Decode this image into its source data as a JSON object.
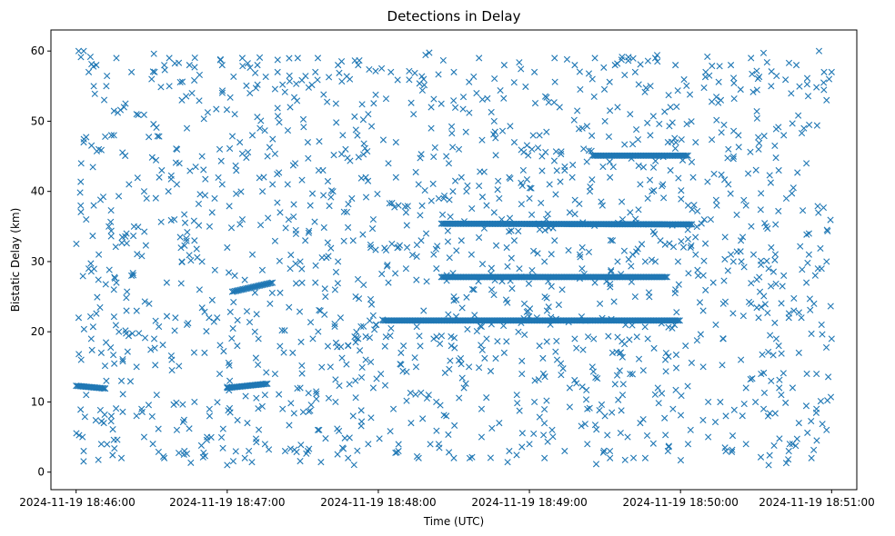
{
  "chart_data": {
    "type": "scatter",
    "title": "Detections in Delay",
    "xlabel": "Time (UTC)",
    "ylabel": "Bistatic Delay (km)",
    "x_unit": "seconds after 2024-11-19 18:46:00 UTC",
    "xlim": [
      -10,
      310
    ],
    "ylim": [
      -2.5,
      63.0
    ],
    "x_ticks": [
      {
        "value": 0,
        "label": "2024-11-19 18:46:00"
      },
      {
        "value": 60,
        "label": "2024-11-19 18:47:00"
      },
      {
        "value": 120,
        "label": "2024-11-19 18:48:00"
      },
      {
        "value": 180,
        "label": "2024-11-19 18:49:00"
      },
      {
        "value": 240,
        "label": "2024-11-19 18:50:00"
      },
      {
        "value": 300,
        "label": "2024-11-19 18:51:00"
      }
    ],
    "y_ticks": [
      0,
      10,
      20,
      30,
      40,
      50,
      60
    ],
    "grid": false,
    "marker": "x",
    "color": "#1f77b4",
    "tracks": [
      {
        "x_start": 0,
        "x_end": 12,
        "y_start": 12.3,
        "y_end": 11.9
      },
      {
        "x_start": 60,
        "x_end": 76,
        "y_start": 12.0,
        "y_end": 12.6
      },
      {
        "x_start": 122,
        "x_end": 240,
        "y_start": 21.6,
        "y_end": 21.6
      },
      {
        "x_start": 145,
        "x_end": 235,
        "y_start": 27.8,
        "y_end": 27.8
      },
      {
        "x_start": 145,
        "x_end": 245,
        "y_start": 35.4,
        "y_end": 35.3
      },
      {
        "x_start": 205,
        "x_end": 243,
        "y_start": 45.1,
        "y_end": 45.1
      },
      {
        "x_start": 62,
        "x_end": 78,
        "y_start": 25.7,
        "y_end": 27.0
      }
    ],
    "scatter_points": [
      [
        3,
        60
      ],
      [
        5,
        57
      ],
      [
        8,
        58
      ],
      [
        12,
        55
      ],
      [
        16,
        59
      ],
      [
        22,
        57
      ],
      [
        30,
        56
      ],
      [
        37,
        59
      ],
      [
        45,
        58
      ],
      [
        58,
        58
      ],
      [
        66,
        59
      ],
      [
        72,
        58
      ],
      [
        80,
        57
      ],
      [
        88,
        59
      ],
      [
        96,
        59
      ],
      [
        104,
        58
      ],
      [
        112,
        58
      ],
      [
        125,
        57
      ],
      [
        138,
        56
      ],
      [
        150,
        57
      ],
      [
        160,
        59
      ],
      [
        170,
        58
      ],
      [
        182,
        57
      ],
      [
        190,
        59
      ],
      [
        198,
        58
      ],
      [
        206,
        59
      ],
      [
        214,
        58
      ],
      [
        222,
        57
      ],
      [
        230,
        59
      ],
      [
        238,
        58
      ],
      [
        250,
        57
      ],
      [
        260,
        58
      ],
      [
        268,
        59
      ],
      [
        276,
        55
      ],
      [
        286,
        58
      ],
      [
        295,
        60
      ],
      [
        300,
        57
      ],
      [
        2,
        44
      ],
      [
        3,
        47
      ],
      [
        9,
        46
      ],
      [
        14,
        48
      ],
      [
        19,
        52
      ],
      [
        24,
        51
      ],
      [
        34,
        43
      ],
      [
        40,
        41
      ],
      [
        44,
        49
      ],
      [
        50,
        45
      ],
      [
        57,
        46
      ],
      [
        63,
        51
      ],
      [
        70,
        48
      ],
      [
        76,
        45
      ],
      [
        84,
        41
      ],
      [
        92,
        47
      ],
      [
        98,
        43
      ],
      [
        107,
        46
      ],
      [
        116,
        51
      ],
      [
        127,
        47
      ],
      [
        134,
        51
      ],
      [
        141,
        49
      ],
      [
        152,
        46
      ],
      [
        166,
        50
      ],
      [
        174,
        47
      ],
      [
        184,
        48
      ],
      [
        192,
        52
      ],
      [
        201,
        49
      ],
      [
        210,
        50
      ],
      [
        220,
        51
      ],
      [
        228,
        48
      ],
      [
        236,
        52
      ],
      [
        246,
        47
      ],
      [
        256,
        53
      ],
      [
        263,
        48
      ],
      [
        271,
        46
      ],
      [
        281,
        48
      ],
      [
        290,
        44
      ],
      [
        298,
        53
      ],
      [
        4,
        36
      ],
      [
        7,
        38
      ],
      [
        13,
        35
      ],
      [
        20,
        34
      ],
      [
        28,
        39
      ],
      [
        33,
        42
      ],
      [
        39,
        36
      ],
      [
        47,
        33
      ],
      [
        54,
        37
      ],
      [
        60,
        32
      ],
      [
        66,
        36
      ],
      [
        74,
        40
      ],
      [
        81,
        37
      ],
      [
        87,
        44
      ],
      [
        93,
        38
      ],
      [
        102,
        40
      ],
      [
        110,
        33
      ],
      [
        118,
        36
      ],
      [
        128,
        38
      ],
      [
        136,
        41
      ],
      [
        144,
        39
      ],
      [
        155,
        40
      ],
      [
        163,
        38
      ],
      [
        172,
        42
      ],
      [
        180,
        39
      ],
      [
        188,
        41
      ],
      [
        196,
        37
      ],
      [
        204,
        40
      ],
      [
        212,
        42
      ],
      [
        220,
        37
      ],
      [
        227,
        39
      ],
      [
        233,
        41
      ],
      [
        243,
        38
      ],
      [
        252,
        36
      ],
      [
        259,
        41
      ],
      [
        266,
        38
      ],
      [
        274,
        35
      ],
      [
        282,
        39
      ],
      [
        291,
        34
      ],
      [
        296,
        29
      ],
      [
        1,
        22
      ],
      [
        5,
        29
      ],
      [
        9,
        31
      ],
      [
        15,
        26
      ],
      [
        22,
        28
      ],
      [
        29,
        24
      ],
      [
        36,
        27
      ],
      [
        42,
        30
      ],
      [
        49,
        26
      ],
      [
        56,
        22
      ],
      [
        63,
        28
      ],
      [
        70,
        31
      ],
      [
        77,
        24
      ],
      [
        85,
        29
      ],
      [
        91,
        33
      ],
      [
        97,
        23
      ],
      [
        104,
        30
      ],
      [
        111,
        25
      ],
      [
        117,
        32
      ],
      [
        124,
        27
      ],
      [
        131,
        29
      ],
      [
        138,
        23
      ],
      [
        142,
        31
      ],
      [
        150,
        25
      ],
      [
        157,
        31
      ],
      [
        165,
        26
      ],
      [
        171,
        32
      ],
      [
        178,
        24
      ],
      [
        186,
        30
      ],
      [
        193,
        26
      ],
      [
        200,
        31
      ],
      [
        208,
        24
      ],
      [
        215,
        30
      ],
      [
        222,
        25
      ],
      [
        230,
        30
      ],
      [
        238,
        26
      ],
      [
        246,
        31
      ],
      [
        253,
        27
      ],
      [
        260,
        31
      ],
      [
        268,
        24
      ],
      [
        275,
        29
      ],
      [
        283,
        22
      ],
      [
        290,
        27
      ],
      [
        298,
        30
      ],
      [
        2,
        16
      ],
      [
        6,
        19
      ],
      [
        10,
        17
      ],
      [
        17,
        20
      ],
      [
        24,
        15
      ],
      [
        31,
        19
      ],
      [
        38,
        16
      ],
      [
        44,
        21
      ],
      [
        51,
        17
      ],
      [
        57,
        14
      ],
      [
        64,
        18
      ],
      [
        71,
        20
      ],
      [
        79,
        14
      ],
      [
        86,
        17
      ],
      [
        94,
        19
      ],
      [
        101,
        15
      ],
      [
        108,
        18
      ],
      [
        115,
        16
      ],
      [
        121,
        14
      ],
      [
        129,
        17
      ],
      [
        135,
        15
      ],
      [
        142,
        19
      ],
      [
        149,
        18
      ],
      [
        156,
        15
      ],
      [
        163,
        19
      ],
      [
        170,
        17
      ],
      [
        177,
        14
      ],
      [
        184,
        18
      ],
      [
        191,
        16
      ],
      [
        198,
        19
      ],
      [
        205,
        15
      ],
      [
        213,
        17
      ],
      [
        220,
        14
      ],
      [
        227,
        19
      ],
      [
        234,
        16
      ],
      [
        242,
        18
      ],
      [
        249,
        15
      ],
      [
        257,
        19
      ],
      [
        264,
        16
      ],
      [
        272,
        14
      ],
      [
        279,
        18
      ],
      [
        287,
        17
      ],
      [
        294,
        14
      ],
      [
        300,
        19
      ],
      [
        4,
        11
      ],
      [
        11,
        7
      ],
      [
        18,
        13
      ],
      [
        26,
        9
      ],
      [
        32,
        11
      ],
      [
        40,
        6
      ],
      [
        47,
        10
      ],
      [
        53,
        8
      ],
      [
        61,
        13
      ],
      [
        68,
        7
      ],
      [
        75,
        11
      ],
      [
        82,
        9
      ],
      [
        89,
        12
      ],
      [
        96,
        6
      ],
      [
        103,
        10
      ],
      [
        110,
        8
      ],
      [
        118,
        12
      ],
      [
        126,
        9
      ],
      [
        133,
        7
      ],
      [
        140,
        11
      ],
      [
        147,
        8
      ],
      [
        154,
        12
      ],
      [
        161,
        9
      ],
      [
        168,
        7
      ],
      [
        175,
        11
      ],
      [
        182,
        10
      ],
      [
        189,
        6
      ],
      [
        196,
        12
      ],
      [
        203,
        9
      ],
      [
        210,
        8
      ],
      [
        217,
        11
      ],
      [
        224,
        7
      ],
      [
        231,
        12
      ],
      [
        237,
        9
      ],
      [
        244,
        6
      ],
      [
        251,
        10
      ],
      [
        258,
        8
      ],
      [
        266,
        12
      ],
      [
        273,
        9
      ],
      [
        280,
        11
      ],
      [
        287,
        7
      ],
      [
        294,
        9
      ],
      [
        3,
        3
      ],
      [
        10,
        4
      ],
      [
        18,
        2
      ],
      [
        27,
        5
      ],
      [
        35,
        2
      ],
      [
        43,
        3
      ],
      [
        52,
        5
      ],
      [
        60,
        1
      ],
      [
        67,
        2
      ],
      [
        75,
        4
      ],
      [
        83,
        3
      ],
      [
        92,
        3
      ],
      [
        108,
        2
      ],
      [
        116,
        4
      ],
      [
        128,
        3
      ],
      [
        136,
        2
      ],
      [
        144,
        4
      ],
      [
        150,
        2
      ],
      [
        161,
        5
      ],
      [
        172,
        3
      ],
      [
        180,
        4
      ],
      [
        186,
        2
      ],
      [
        194,
        3
      ],
      [
        203,
        4
      ],
      [
        212,
        2
      ],
      [
        219,
        5
      ],
      [
        226,
        2
      ],
      [
        235,
        3
      ],
      [
        243,
        4
      ],
      [
        251,
        5
      ],
      [
        258,
        3
      ],
      [
        266,
        4
      ],
      [
        275,
        1
      ],
      [
        283,
        3
      ],
      [
        292,
        2
      ],
      [
        298,
        6
      ],
      [
        12,
        13
      ],
      [
        14,
        8
      ],
      [
        16,
        27
      ],
      [
        20,
        23
      ],
      [
        23,
        35
      ],
      [
        27,
        40
      ],
      [
        37,
        55
      ],
      [
        42,
        53
      ],
      [
        46,
        54
      ],
      [
        50,
        30
      ],
      [
        53,
        35
      ],
      [
        58,
        41
      ],
      [
        69,
        54
      ],
      [
        73,
        49
      ],
      [
        78,
        41
      ],
      [
        89,
        30
      ],
      [
        95,
        27
      ],
      [
        99,
        25
      ],
      [
        105,
        22
      ],
      [
        112,
        19
      ],
      [
        119,
        21
      ],
      [
        124,
        44
      ],
      [
        127,
        42
      ],
      [
        130,
        18
      ],
      [
        137,
        33
      ],
      [
        139,
        34
      ],
      [
        146,
        39
      ],
      [
        148,
        44
      ],
      [
        153,
        33
      ],
      [
        158,
        26
      ],
      [
        166,
        37
      ],
      [
        168,
        39
      ],
      [
        174,
        33
      ],
      [
        176,
        29
      ],
      [
        181,
        46
      ],
      [
        183,
        22
      ],
      [
        187,
        23
      ],
      [
        190,
        33
      ],
      [
        194,
        43
      ],
      [
        197,
        42
      ],
      [
        201,
        32
      ],
      [
        206,
        27
      ],
      [
        209,
        38
      ],
      [
        213,
        33
      ],
      [
        217,
        36
      ],
      [
        221,
        31
      ],
      [
        224,
        41
      ],
      [
        226,
        30
      ],
      [
        232,
        33
      ],
      [
        236,
        43
      ],
      [
        239,
        30
      ],
      [
        244,
        32
      ],
      [
        247,
        28
      ],
      [
        249,
        23
      ],
      [
        254,
        21
      ],
      [
        257,
        24
      ],
      [
        261,
        30
      ],
      [
        264,
        33
      ],
      [
        269,
        31
      ],
      [
        271,
        22
      ],
      [
        276,
        32
      ],
      [
        278,
        19
      ],
      [
        281,
        28
      ],
      [
        285,
        23
      ],
      [
        288,
        22
      ],
      [
        291,
        31
      ],
      [
        293,
        24
      ],
      [
        296,
        21
      ],
      [
        1,
        60
      ],
      [
        299,
        56
      ],
      [
        7,
        55
      ],
      [
        297,
        57
      ],
      [
        15,
        48
      ],
      [
        289,
        49
      ],
      [
        21,
        41
      ],
      [
        279,
        43
      ],
      [
        41,
        44
      ],
      [
        259,
        46
      ],
      [
        55,
        39
      ],
      [
        245,
        42
      ],
      [
        65,
        47
      ],
      [
        235,
        47
      ],
      [
        85,
        52
      ],
      [
        215,
        52
      ],
      [
        95,
        57
      ],
      [
        205,
        56
      ],
      [
        115,
        42
      ],
      [
        185,
        45
      ],
      [
        131,
        37
      ],
      [
        169,
        36
      ],
      [
        141,
        52
      ],
      [
        159,
        54
      ],
      [
        147,
        45
      ],
      [
        153,
        42
      ]
    ]
  }
}
